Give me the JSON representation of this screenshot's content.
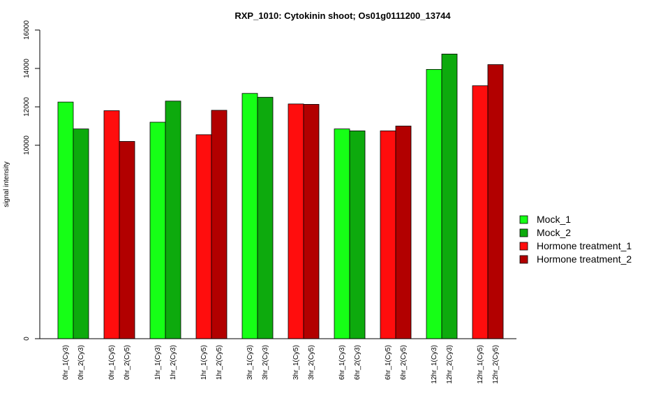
{
  "chart_data": {
    "type": "bar",
    "title": "RXP_1010: Cytokinin shoot; Os01g0111200_13744",
    "xlabel": "",
    "ylabel": "signal intensity",
    "y_ticks": [
      "0",
      "10000",
      "12000",
      "14000",
      "16000"
    ],
    "y_tick_values": [
      0,
      10000,
      12000,
      14000,
      16000
    ],
    "axis_breaks": "discontinuous y axis: 0, then 10000–16000",
    "bars": [
      {
        "label": "0hr_1(Cy3)",
        "value": 12250,
        "series": "Mock_1"
      },
      {
        "label": "0hr_2(Cy3)",
        "value": 10850,
        "series": "Mock_2"
      },
      {
        "label": "0hr_1(Cy5)",
        "value": 11800,
        "series": "Hormone treatment_1"
      },
      {
        "label": "0hr_2(Cy5)",
        "value": 10200,
        "series": "Hormone treatment_2"
      },
      {
        "label": "1hr_1(Cy3)",
        "value": 11200,
        "series": "Mock_1"
      },
      {
        "label": "1hr_2(Cy3)",
        "value": 12300,
        "series": "Mock_2"
      },
      {
        "label": "1hr_1(Cy5)",
        "value": 10550,
        "series": "Hormone treatment_1"
      },
      {
        "label": "1hr_2(Cy5)",
        "value": 11820,
        "series": "Hormone treatment_2"
      },
      {
        "label": "3hr_1(Cy3)",
        "value": 12700,
        "series": "Mock_1"
      },
      {
        "label": "3hr_2(Cy3)",
        "value": 12500,
        "series": "Mock_2"
      },
      {
        "label": "3hr_1(Cy5)",
        "value": 12150,
        "series": "Hormone treatment_1"
      },
      {
        "label": "3hr_2(Cy5)",
        "value": 12130,
        "series": "Hormone treatment_2"
      },
      {
        "label": "6hr_1(Cy3)",
        "value": 10850,
        "series": "Mock_1"
      },
      {
        "label": "6hr_2(Cy3)",
        "value": 10750,
        "series": "Mock_2"
      },
      {
        "label": "6hr_1(Cy5)",
        "value": 10750,
        "series": "Hormone treatment_1"
      },
      {
        "label": "6hr_2(Cy5)",
        "value": 11000,
        "series": "Hormone treatment_2"
      },
      {
        "label": "12hr_1(Cy3)",
        "value": 13950,
        "series": "Mock_1"
      },
      {
        "label": "12hr_2(Cy3)",
        "value": 14750,
        "series": "Mock_2"
      },
      {
        "label": "12hr_1(Cy5)",
        "value": 13100,
        "series": "Hormone treatment_1"
      },
      {
        "label": "12hr_2(Cy5)",
        "value": 14200,
        "series": "Hormone treatment_2"
      }
    ],
    "legend": {
      "placement": "right",
      "items": [
        {
          "name": "Mock_1",
          "color": "#16FF16"
        },
        {
          "name": "Mock_2",
          "color": "#0DAA0D"
        },
        {
          "name": "Hormone treatment_1",
          "color": "#FF0D0D"
        },
        {
          "name": "Hormone treatment_2",
          "color": "#B20000"
        }
      ]
    }
  }
}
